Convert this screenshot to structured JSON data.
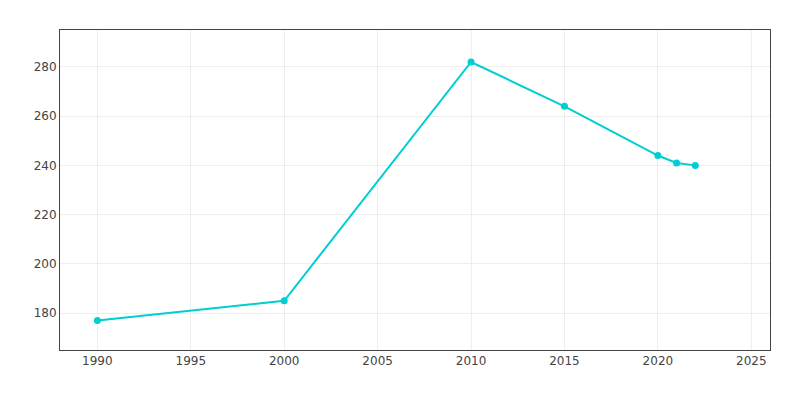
{
  "chart_data": {
    "type": "line",
    "x": [
      1990,
      2000,
      2010,
      2015,
      2020,
      2021,
      2022
    ],
    "values": [
      177,
      185,
      282,
      264,
      244,
      241,
      240
    ],
    "color": "#00CED1",
    "marker": "circle",
    "xlim": [
      1988,
      2026
    ],
    "ylim": [
      165,
      295
    ],
    "xticks": [
      1990,
      1995,
      2000,
      2005,
      2010,
      2015,
      2020,
      2025
    ],
    "yticks": [
      180,
      200,
      220,
      240,
      260,
      280
    ],
    "grid": true
  }
}
